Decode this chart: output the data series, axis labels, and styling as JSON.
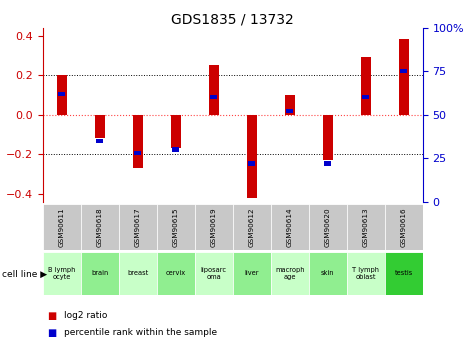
{
  "title": "GDS1835 / 13732",
  "gsm_labels": [
    "GSM90611",
    "GSM90618",
    "GSM90617",
    "GSM90615",
    "GSM90619",
    "GSM90612",
    "GSM90614",
    "GSM90620",
    "GSM90613",
    "GSM90616"
  ],
  "cell_lines": [
    "B lymph\nocyte",
    "brain",
    "breast",
    "cervix",
    "liposarc\noma",
    "liver",
    "macroph\nage",
    "skin",
    "T lymph\noblast",
    "testis"
  ],
  "cell_line_colors": [
    "#c8ffc8",
    "#c8ffc8",
    "#c8ffc8",
    "#c8ffc8",
    "#c8ffc8",
    "#c8ffc8",
    "#c8ffc8",
    "#c8ffc8",
    "#c8ffc8",
    "#33cc33"
  ],
  "log2_ratio": [
    0.2,
    -0.12,
    -0.27,
    -0.17,
    0.25,
    -0.42,
    0.1,
    -0.23,
    0.29,
    0.38
  ],
  "percentile_rank_raw": [
    62,
    35,
    28,
    30,
    60,
    22,
    52,
    22,
    60,
    75
  ],
  "bar_color": "#cc0000",
  "blue_color": "#0000cc",
  "ylim": [
    -0.44,
    0.44
  ],
  "yticks_left": [
    -0.4,
    -0.2,
    0.0,
    0.2,
    0.4
  ],
  "yticks_right": [
    0,
    25,
    50,
    75,
    100
  ],
  "zero_line_color": "#ff4444",
  "bg_color": "#ffffff",
  "gsm_bg": "#c8c8c8",
  "cell_light": "#c8ffc8",
  "cell_dark": "#90ee90",
  "cell_last": "#33cc33"
}
